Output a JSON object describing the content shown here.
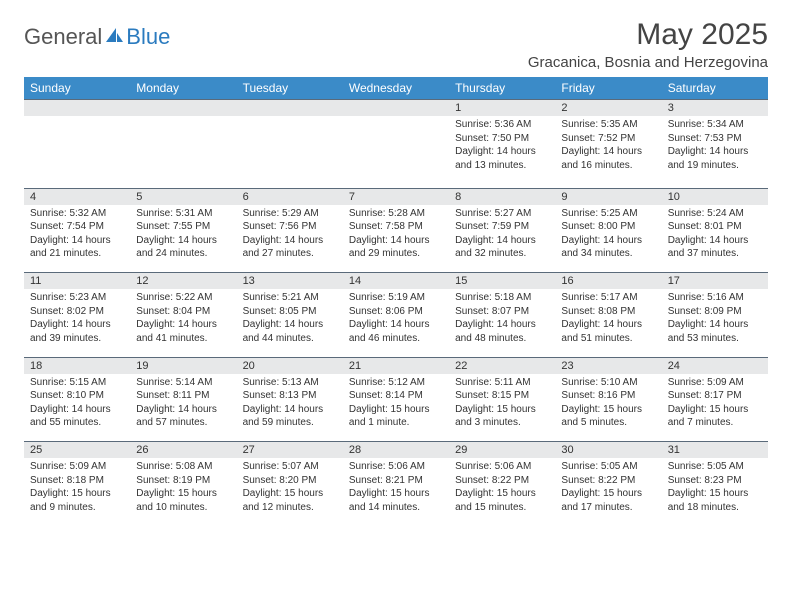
{
  "logo": {
    "part1": "General",
    "part2": "Blue"
  },
  "title": "May 2025",
  "location": "Gracanica, Bosnia and Herzegovina",
  "colors": {
    "header_bg": "#3b8bc8",
    "header_fg": "#ffffff",
    "daynum_bg": "#e7e8e9",
    "border": "#5a6a7a",
    "logo_blue": "#2b7bbf"
  },
  "weekdays": [
    "Sunday",
    "Monday",
    "Tuesday",
    "Wednesday",
    "Thursday",
    "Friday",
    "Saturday"
  ],
  "weeks": [
    {
      "nums": [
        "",
        "",
        "",
        "",
        "1",
        "2",
        "3"
      ],
      "details": [
        "",
        "",
        "",
        "",
        "Sunrise: 5:36 AM\nSunset: 7:50 PM\nDaylight: 14 hours and 13 minutes.",
        "Sunrise: 5:35 AM\nSunset: 7:52 PM\nDaylight: 14 hours and 16 minutes.",
        "Sunrise: 5:34 AM\nSunset: 7:53 PM\nDaylight: 14 hours and 19 minutes."
      ]
    },
    {
      "nums": [
        "4",
        "5",
        "6",
        "7",
        "8",
        "9",
        "10"
      ],
      "details": [
        "Sunrise: 5:32 AM\nSunset: 7:54 PM\nDaylight: 14 hours and 21 minutes.",
        "Sunrise: 5:31 AM\nSunset: 7:55 PM\nDaylight: 14 hours and 24 minutes.",
        "Sunrise: 5:29 AM\nSunset: 7:56 PM\nDaylight: 14 hours and 27 minutes.",
        "Sunrise: 5:28 AM\nSunset: 7:58 PM\nDaylight: 14 hours and 29 minutes.",
        "Sunrise: 5:27 AM\nSunset: 7:59 PM\nDaylight: 14 hours and 32 minutes.",
        "Sunrise: 5:25 AM\nSunset: 8:00 PM\nDaylight: 14 hours and 34 minutes.",
        "Sunrise: 5:24 AM\nSunset: 8:01 PM\nDaylight: 14 hours and 37 minutes."
      ]
    },
    {
      "nums": [
        "11",
        "12",
        "13",
        "14",
        "15",
        "16",
        "17"
      ],
      "details": [
        "Sunrise: 5:23 AM\nSunset: 8:02 PM\nDaylight: 14 hours and 39 minutes.",
        "Sunrise: 5:22 AM\nSunset: 8:04 PM\nDaylight: 14 hours and 41 minutes.",
        "Sunrise: 5:21 AM\nSunset: 8:05 PM\nDaylight: 14 hours and 44 minutes.",
        "Sunrise: 5:19 AM\nSunset: 8:06 PM\nDaylight: 14 hours and 46 minutes.",
        "Sunrise: 5:18 AM\nSunset: 8:07 PM\nDaylight: 14 hours and 48 minutes.",
        "Sunrise: 5:17 AM\nSunset: 8:08 PM\nDaylight: 14 hours and 51 minutes.",
        "Sunrise: 5:16 AM\nSunset: 8:09 PM\nDaylight: 14 hours and 53 minutes."
      ]
    },
    {
      "nums": [
        "18",
        "19",
        "20",
        "21",
        "22",
        "23",
        "24"
      ],
      "details": [
        "Sunrise: 5:15 AM\nSunset: 8:10 PM\nDaylight: 14 hours and 55 minutes.",
        "Sunrise: 5:14 AM\nSunset: 8:11 PM\nDaylight: 14 hours and 57 minutes.",
        "Sunrise: 5:13 AM\nSunset: 8:13 PM\nDaylight: 14 hours and 59 minutes.",
        "Sunrise: 5:12 AM\nSunset: 8:14 PM\nDaylight: 15 hours and 1 minute.",
        "Sunrise: 5:11 AM\nSunset: 8:15 PM\nDaylight: 15 hours and 3 minutes.",
        "Sunrise: 5:10 AM\nSunset: 8:16 PM\nDaylight: 15 hours and 5 minutes.",
        "Sunrise: 5:09 AM\nSunset: 8:17 PM\nDaylight: 15 hours and 7 minutes."
      ]
    },
    {
      "nums": [
        "25",
        "26",
        "27",
        "28",
        "29",
        "30",
        "31"
      ],
      "details": [
        "Sunrise: 5:09 AM\nSunset: 8:18 PM\nDaylight: 15 hours and 9 minutes.",
        "Sunrise: 5:08 AM\nSunset: 8:19 PM\nDaylight: 15 hours and 10 minutes.",
        "Sunrise: 5:07 AM\nSunset: 8:20 PM\nDaylight: 15 hours and 12 minutes.",
        "Sunrise: 5:06 AM\nSunset: 8:21 PM\nDaylight: 15 hours and 14 minutes.",
        "Sunrise: 5:06 AM\nSunset: 8:22 PM\nDaylight: 15 hours and 15 minutes.",
        "Sunrise: 5:05 AM\nSunset: 8:22 PM\nDaylight: 15 hours and 17 minutes.",
        "Sunrise: 5:05 AM\nSunset: 8:23 PM\nDaylight: 15 hours and 18 minutes."
      ]
    }
  ]
}
